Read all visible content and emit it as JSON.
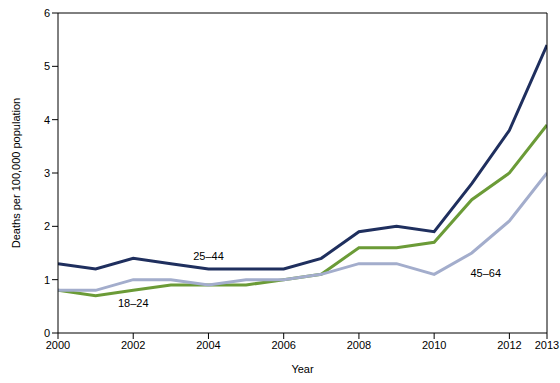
{
  "chart_data": {
    "type": "line",
    "x_label": "Year",
    "y_label": "Deaths per 100,000 population",
    "x": [
      2000,
      2001,
      2002,
      2003,
      2004,
      2005,
      2006,
      2007,
      2008,
      2009,
      2010,
      2011,
      2012,
      2013
    ],
    "series": [
      {
        "name": "25–44",
        "color": "#1f2f5e",
        "values": [
          1.3,
          1.2,
          1.4,
          1.3,
          1.2,
          1.2,
          1.2,
          1.4,
          1.9,
          2.0,
          1.9,
          2.8,
          3.8,
          5.4
        ]
      },
      {
        "name": "18–24",
        "color": "#6b9b37",
        "values": [
          0.8,
          0.7,
          0.8,
          0.9,
          0.9,
          0.9,
          1.0,
          1.1,
          1.6,
          1.6,
          1.7,
          2.5,
          3.0,
          3.9
        ]
      },
      {
        "name": "45–64",
        "color": "#a3adcc",
        "values": [
          0.8,
          0.8,
          1.0,
          1.0,
          0.9,
          1.0,
          1.0,
          1.1,
          1.3,
          1.3,
          1.1,
          1.5,
          2.1,
          3.0
        ]
      }
    ],
    "xlim": [
      2000,
      2013
    ],
    "xticks": [
      2000,
      2002,
      2004,
      2006,
      2008,
      2010,
      2012,
      2013
    ],
    "ylim": [
      0,
      6
    ],
    "yticks": [
      0,
      1,
      2,
      3,
      4,
      5,
      6
    ],
    "grid": false
  }
}
